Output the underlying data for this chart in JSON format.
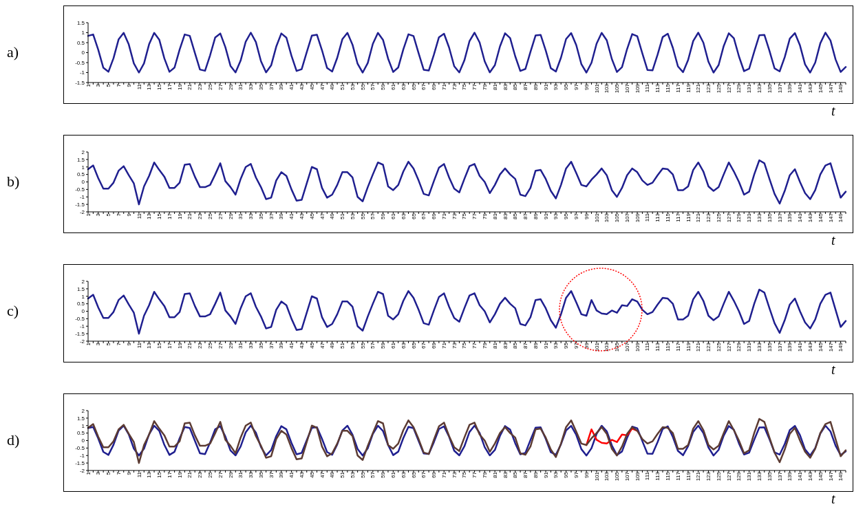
{
  "chart_data": [
    {
      "type": "line",
      "title": "a)",
      "xlabel": "t",
      "ylim": [
        -1.5,
        1.5
      ],
      "yticks": [
        -1.5,
        -1,
        -0.5,
        0,
        0.5,
        1,
        1.5
      ],
      "categories": [
        "1",
        null,
        "3",
        null,
        "5",
        null,
        "7",
        null,
        "9",
        null,
        "11",
        null,
        "13",
        null,
        "15",
        null,
        "17",
        null,
        "19",
        null,
        "21",
        null,
        "23",
        null,
        "25",
        null,
        "27",
        null,
        "29",
        null,
        "31",
        null,
        "33",
        null,
        "35",
        null,
        "37",
        null,
        "39",
        null,
        "41",
        null,
        "43",
        null,
        "45",
        null,
        "47",
        null,
        "49",
        null,
        "51",
        null,
        "53",
        null,
        "55",
        null,
        "57",
        null,
        "59",
        null,
        "61",
        null,
        "63",
        null,
        "65",
        null,
        "67",
        null,
        "69",
        null,
        "71",
        null,
        "73",
        null,
        "75",
        null,
        "77",
        null,
        "79",
        null,
        "81",
        null,
        "83",
        null,
        "85",
        null,
        "87",
        null,
        "89",
        null,
        "91",
        null,
        "93",
        null,
        "95",
        null,
        "97",
        null,
        "99",
        null,
        "101",
        null,
        "103",
        null,
        "105",
        null,
        "107",
        null,
        "109",
        null,
        "111",
        null,
        "113",
        null,
        "115",
        null,
        "117",
        null,
        "119",
        null,
        "121",
        null,
        "123",
        null,
        "125",
        null,
        "127",
        null,
        "129",
        null,
        "131",
        null,
        "133",
        null,
        "135",
        null,
        "137",
        null,
        "139",
        null,
        "141",
        null,
        "143",
        null,
        "145",
        null,
        "147",
        null,
        "149",
        null
      ],
      "series": [
        {
          "color": "#1f1f8f",
          "values": [
            0.84,
            0.91,
            0.14,
            -0.76,
            -0.96,
            -0.28,
            0.66,
            0.99,
            0.41,
            -0.54,
            -1.0,
            -0.54,
            0.42,
            0.99,
            0.65,
            -0.29,
            -0.96,
            -0.75,
            0.15,
            0.91,
            0.84,
            -0.01,
            -0.85,
            -0.91,
            -0.13,
            0.76,
            0.96,
            0.27,
            -0.66,
            -0.99,
            -0.4,
            0.55,
            1.0,
            0.53,
            -0.43,
            -0.99,
            -0.64,
            0.3,
            0.96,
            0.75,
            -0.16,
            -0.92,
            -0.83,
            0.02,
            0.85,
            0.9,
            0.12,
            -0.77,
            -0.95,
            -0.26,
            0.67,
            0.99,
            0.4,
            -0.56,
            -1.0,
            -0.52,
            0.44,
            0.99,
            0.64,
            -0.3,
            -0.97,
            -0.74,
            0.17,
            0.92,
            0.83,
            -0.03,
            -0.86,
            -0.9,
            -0.11,
            0.77,
            0.95,
            0.25,
            -0.68,
            -0.99,
            -0.39,
            0.57,
            1.0,
            0.51,
            -0.44,
            -0.99,
            -0.63,
            0.31,
            0.97,
            0.73,
            -0.18,
            -0.92,
            -0.82,
            0.04,
            0.86,
            0.89,
            0.11,
            -0.78,
            -0.95,
            -0.25,
            0.68,
            0.98,
            0.38,
            -0.57,
            -1.0,
            -0.51,
            0.45,
            0.99,
            0.62,
            -0.32,
            -0.97,
            -0.73,
            0.18,
            0.93,
            0.82,
            -0.04,
            -0.87,
            -0.89,
            -0.1,
            0.78,
            0.95,
            0.24,
            -0.69,
            -0.98,
            -0.37,
            0.58,
            1.0,
            0.5,
            -0.46,
            -1.0,
            -0.62,
            0.33,
            0.97,
            0.72,
            -0.19,
            -0.93,
            -0.81,
            0.05,
            0.87,
            0.89,
            0.09,
            -0.79,
            -0.94,
            -0.23,
            0.7,
            0.98,
            0.36,
            -0.59,
            -1.0,
            -0.5,
            0.47,
            1.0,
            0.61,
            -0.34,
            -0.97,
            -0.72
          ]
        }
      ]
    },
    {
      "type": "line",
      "title": "b)",
      "xlabel": "t",
      "ylim": [
        -2,
        2
      ],
      "yticks": [
        -2,
        -1.5,
        -1,
        -0.5,
        0,
        0.5,
        1,
        1.5,
        2
      ],
      "categories": [
        "1",
        null,
        "3",
        null,
        "5",
        null,
        "7",
        null,
        "9",
        null,
        "11",
        null,
        "13",
        null,
        "15",
        null,
        "17",
        null,
        "19",
        null,
        "21",
        null,
        "23",
        null,
        "25",
        null,
        "27",
        null,
        "29",
        null,
        "31",
        null,
        "33",
        null,
        "35",
        null,
        "37",
        null,
        "39",
        null,
        "41",
        null,
        "43",
        null,
        "45",
        null,
        "47",
        null,
        "49",
        null,
        "51",
        null,
        "53",
        null,
        "55",
        null,
        "57",
        null,
        "59",
        null,
        "61",
        null,
        "63",
        null,
        "65",
        null,
        "67",
        null,
        "69",
        null,
        "71",
        null,
        "73",
        null,
        "75",
        null,
        "77",
        null,
        "79",
        null,
        "81",
        null,
        "83",
        null,
        "85",
        null,
        "87",
        null,
        "89",
        null,
        "91",
        null,
        "93",
        null,
        "95",
        null,
        "97",
        null,
        "99",
        null,
        "101",
        null,
        "103",
        null,
        "105",
        null,
        "107",
        null,
        "109",
        null,
        "111",
        null,
        "113",
        null,
        "115",
        null,
        "117",
        null,
        "119",
        null,
        "121",
        null,
        "123",
        null,
        "125",
        null,
        "127",
        null,
        "129",
        null,
        "131",
        null,
        "133",
        null,
        "135",
        null,
        "137",
        null,
        "139",
        null,
        "141",
        null,
        "143",
        null,
        "145",
        null,
        "147",
        null,
        "149",
        null
      ],
      "series": [
        {
          "color": "#1f1f8f",
          "values": [
            0.85,
            1.1,
            0.25,
            -0.45,
            -0.45,
            -0.05,
            0.75,
            1.05,
            0.45,
            -0.1,
            -1.5,
            -0.3,
            0.4,
            1.3,
            0.8,
            0.35,
            -0.4,
            -0.4,
            -0.05,
            1.15,
            1.2,
            0.35,
            -0.35,
            -0.35,
            -0.2,
            0.5,
            1.25,
            0.05,
            -0.35,
            -0.85,
            0.2,
            1.0,
            1.2,
            0.3,
            -0.35,
            -1.15,
            -1.05,
            0.1,
            0.65,
            0.4,
            -0.5,
            -1.25,
            -1.2,
            -0.1,
            1.0,
            0.85,
            -0.4,
            -1.05,
            -0.85,
            -0.2,
            0.65,
            0.65,
            0.3,
            -1.0,
            -1.3,
            -0.35,
            0.5,
            1.3,
            1.15,
            -0.3,
            -0.55,
            -0.2,
            0.7,
            1.35,
            0.9,
            0.1,
            -0.8,
            -0.9,
            0.05,
            0.95,
            1.2,
            0.3,
            -0.45,
            -0.7,
            0.2,
            1.05,
            1.2,
            0.4,
            0.0,
            -0.75,
            -0.2,
            0.5,
            0.9,
            0.5,
            0.2,
            -0.85,
            -0.95,
            -0.4,
            0.75,
            0.8,
            0.2,
            -0.6,
            -1.1,
            -0.2,
            0.9,
            1.35,
            0.6,
            -0.2,
            -0.3,
            0.15,
            0.5,
            0.9,
            0.45,
            -0.55,
            -1.0,
            -0.4,
            0.45,
            0.9,
            0.65,
            0.1,
            -0.2,
            -0.05,
            0.45,
            0.9,
            0.85,
            0.5,
            -0.55,
            -0.55,
            -0.3,
            0.8,
            1.3,
            0.7,
            -0.3,
            -0.6,
            -0.35,
            0.5,
            1.3,
            0.7,
            0.0,
            -0.85,
            -0.65,
            0.5,
            1.45,
            1.25,
            0.2,
            -0.8,
            -1.45,
            -0.6,
            0.45,
            0.85,
            0.0,
            -0.75,
            -1.15,
            -0.55,
            0.5,
            1.1,
            1.25,
            0.1,
            -1.05,
            -0.65
          ]
        }
      ]
    },
    {
      "type": "line",
      "title": "c)",
      "xlabel": "t",
      "ylim": [
        -2,
        2
      ],
      "yticks": [
        -2,
        -1.5,
        -1,
        -0.5,
        0,
        0.5,
        1,
        1.5,
        2
      ],
      "categories": [
        "1",
        null,
        "3",
        null,
        "5",
        null,
        "7",
        null,
        "9",
        null,
        "11",
        null,
        "13",
        null,
        "15",
        null,
        "17",
        null,
        "19",
        null,
        "21",
        null,
        "23",
        null,
        "25",
        null,
        "27",
        null,
        "29",
        null,
        "31",
        null,
        "33",
        null,
        "35",
        null,
        "37",
        null,
        "39",
        null,
        "41",
        null,
        "43",
        null,
        "45",
        null,
        "47",
        null,
        "49",
        null,
        "51",
        null,
        "53",
        null,
        "55",
        null,
        "57",
        null,
        "59",
        null,
        "61",
        null,
        "63",
        null,
        "65",
        null,
        "67",
        null,
        "69",
        null,
        "71",
        null,
        "73",
        null,
        "75",
        null,
        "77",
        null,
        "79",
        null,
        "81",
        null,
        "83",
        null,
        "85",
        null,
        "87",
        null,
        "89",
        null,
        "91",
        null,
        "93",
        null,
        "95",
        null,
        "97",
        null,
        "99",
        null,
        "101",
        null,
        "103",
        null,
        "105",
        null,
        "107",
        null,
        "109",
        null,
        "111",
        null,
        "113",
        null,
        "115",
        null,
        "117",
        null,
        "119",
        null,
        "121",
        null,
        "123",
        null,
        "125",
        null,
        "127",
        null,
        "129",
        null,
        "131",
        null,
        "133",
        null,
        "135",
        null,
        "137",
        null,
        "139",
        null,
        "141",
        null,
        "143",
        null,
        "145",
        null,
        "147",
        null,
        "149",
        null
      ],
      "series": [
        {
          "color": "#1f1f8f",
          "values": [
            0.85,
            1.1,
            0.25,
            -0.45,
            -0.45,
            -0.05,
            0.75,
            1.05,
            0.45,
            -0.1,
            -1.5,
            -0.3,
            0.4,
            1.3,
            0.8,
            0.35,
            -0.4,
            -0.4,
            -0.05,
            1.15,
            1.2,
            0.35,
            -0.35,
            -0.35,
            -0.2,
            0.5,
            1.25,
            0.05,
            -0.35,
            -0.85,
            0.2,
            1.0,
            1.2,
            0.3,
            -0.35,
            -1.15,
            -1.05,
            0.1,
            0.65,
            0.4,
            -0.5,
            -1.25,
            -1.2,
            -0.1,
            1.0,
            0.85,
            -0.4,
            -1.05,
            -0.85,
            -0.2,
            0.65,
            0.65,
            0.3,
            -1.0,
            -1.3,
            -0.35,
            0.5,
            1.3,
            1.15,
            -0.3,
            -0.55,
            -0.2,
            0.7,
            1.35,
            0.9,
            0.1,
            -0.8,
            -0.9,
            0.05,
            0.95,
            1.2,
            0.3,
            -0.45,
            -0.7,
            0.2,
            1.05,
            1.2,
            0.4,
            0.0,
            -0.75,
            -0.2,
            0.5,
            0.9,
            0.5,
            0.2,
            -0.85,
            -0.95,
            -0.4,
            0.75,
            0.8,
            0.2,
            -0.6,
            -1.1,
            -0.2,
            0.9,
            1.35,
            0.6,
            -0.2,
            -0.3,
            0.75,
            0.05,
            -0.15,
            -0.2,
            0.05,
            -0.1,
            0.4,
            0.35,
            0.8,
            0.65,
            0.1,
            -0.2,
            -0.05,
            0.45,
            0.9,
            0.85,
            0.5,
            -0.55,
            -0.55,
            -0.3,
            0.8,
            1.3,
            0.7,
            -0.3,
            -0.6,
            -0.35,
            0.5,
            1.3,
            0.7,
            0.0,
            -0.85,
            -0.65,
            0.5,
            1.45,
            1.25,
            0.2,
            -0.8,
            -1.45,
            -0.6,
            0.45,
            0.85,
            0.0,
            -0.75,
            -1.15,
            -0.55,
            0.5,
            1.1,
            1.25,
            0.1,
            -1.05,
            -0.65
          ]
        }
      ]
    },
    {
      "type": "line",
      "title": "d)",
      "xlabel": "t",
      "ylim": [
        -2,
        2
      ],
      "yticks": [
        -2,
        -1.5,
        -1,
        -0.5,
        0,
        0.5,
        1,
        1.5,
        2
      ],
      "categories": [
        "1",
        null,
        "3",
        null,
        "5",
        null,
        "7",
        null,
        "9",
        null,
        "11",
        null,
        "13",
        null,
        "15",
        null,
        "17",
        null,
        "19",
        null,
        "21",
        null,
        "23",
        null,
        "25",
        null,
        "27",
        null,
        "29",
        null,
        "31",
        null,
        "33",
        null,
        "35",
        null,
        "37",
        null,
        "39",
        null,
        "41",
        null,
        "43",
        null,
        "45",
        null,
        "47",
        null,
        "49",
        null,
        "51",
        null,
        "53",
        null,
        "55",
        null,
        "57",
        null,
        "59",
        null,
        "61",
        null,
        "63",
        null,
        "65",
        null,
        "67",
        null,
        "69",
        null,
        "71",
        null,
        "73",
        null,
        "75",
        null,
        "77",
        null,
        "79",
        null,
        "81",
        null,
        "83",
        null,
        "85",
        null,
        "87",
        null,
        "89",
        null,
        "91",
        null,
        "93",
        null,
        "95",
        null,
        "97",
        null,
        "99",
        null,
        "101",
        null,
        "103",
        null,
        "105",
        null,
        "107",
        null,
        "109",
        null,
        "111",
        null,
        "113",
        null,
        "115",
        null,
        "117",
        null,
        "119",
        null,
        "121",
        null,
        "123",
        null,
        "125",
        null,
        "127",
        null,
        "129",
        null,
        "131",
        null,
        "133",
        null,
        "135",
        null,
        "137",
        null,
        "139",
        null,
        "141",
        null,
        "143",
        null,
        "145",
        null,
        "147",
        null,
        "149",
        null
      ],
      "series": [
        {
          "color": "#1f1f8f",
          "values": [
            0.84,
            0.91,
            0.14,
            -0.76,
            -0.96,
            -0.28,
            0.66,
            0.99,
            0.41,
            -0.54,
            -1.0,
            -0.54,
            0.42,
            0.99,
            0.65,
            -0.29,
            -0.96,
            -0.75,
            0.15,
            0.91,
            0.84,
            -0.01,
            -0.85,
            -0.91,
            -0.13,
            0.76,
            0.96,
            0.27,
            -0.66,
            -0.99,
            -0.4,
            0.55,
            1.0,
            0.53,
            -0.43,
            -0.99,
            -0.64,
            0.3,
            0.96,
            0.75,
            -0.16,
            -0.92,
            -0.83,
            0.02,
            0.85,
            0.9,
            0.12,
            -0.77,
            -0.95,
            -0.26,
            0.67,
            0.99,
            0.4,
            -0.56,
            -1.0,
            -0.52,
            0.44,
            0.99,
            0.64,
            -0.3,
            -0.97,
            -0.74,
            0.17,
            0.92,
            0.83,
            -0.03,
            -0.86,
            -0.9,
            -0.11,
            0.77,
            0.95,
            0.25,
            -0.68,
            -0.99,
            -0.39,
            0.57,
            1.0,
            0.51,
            -0.44,
            -0.99,
            -0.63,
            0.31,
            0.97,
            0.73,
            -0.18,
            -0.92,
            -0.82,
            0.04,
            0.86,
            0.89,
            0.11,
            -0.78,
            -0.95,
            -0.25,
            0.68,
            0.98,
            0.38,
            -0.57,
            -1.0,
            -0.51,
            0.45,
            0.99,
            0.62,
            -0.32,
            -0.97,
            -0.73,
            0.18,
            0.93,
            0.82,
            -0.04,
            -0.87,
            -0.89,
            -0.1,
            0.78,
            0.95,
            0.24,
            -0.69,
            -0.98,
            -0.37,
            0.58,
            1.0,
            0.5,
            -0.46,
            -1.0,
            -0.62,
            0.33,
            0.97,
            0.72,
            -0.19,
            -0.93,
            -0.81,
            0.05,
            0.87,
            0.89,
            0.09,
            -0.79,
            -0.94,
            -0.23,
            0.7,
            0.98,
            0.36,
            -0.59,
            -1.0,
            -0.5,
            0.47,
            1.0,
            0.61,
            -0.34,
            -0.97,
            -0.72
          ]
        },
        {
          "color": "#ff0000",
          "values": [
            null,
            null,
            null,
            null,
            null,
            null,
            null,
            null,
            null,
            null,
            null,
            null,
            null,
            null,
            null,
            null,
            null,
            null,
            null,
            null,
            null,
            null,
            null,
            null,
            null,
            null,
            null,
            null,
            null,
            null,
            null,
            null,
            null,
            null,
            null,
            null,
            null,
            null,
            null,
            null,
            null,
            null,
            null,
            null,
            null,
            null,
            null,
            null,
            null,
            null,
            null,
            null,
            null,
            null,
            null,
            null,
            null,
            null,
            null,
            null,
            null,
            null,
            null,
            null,
            null,
            null,
            null,
            null,
            null,
            null,
            null,
            null,
            null,
            null,
            null,
            null,
            null,
            null,
            null,
            null,
            null,
            null,
            null,
            null,
            null,
            null,
            null,
            null,
            null,
            null,
            null,
            null,
            null,
            null,
            null,
            null,
            null,
            null,
            -0.3,
            0.75,
            0.05,
            -0.15,
            -0.2,
            0.05,
            -0.1,
            0.4,
            0.35,
            0.8,
            0.65,
            null,
            null,
            null,
            null,
            null,
            null,
            null,
            null,
            null,
            null,
            null,
            null,
            null,
            null,
            null,
            null,
            null,
            null,
            null,
            null,
            null,
            null,
            null,
            null,
            null,
            null,
            null,
            null,
            null,
            null,
            null,
            null,
            null,
            null,
            null,
            null,
            null,
            null,
            null,
            null,
            null
          ]
        },
        {
          "color": "#5c3b33",
          "values": [
            0.85,
            1.1,
            0.25,
            -0.45,
            -0.45,
            -0.05,
            0.75,
            1.05,
            0.45,
            -0.1,
            -1.5,
            -0.3,
            0.4,
            1.3,
            0.8,
            0.35,
            -0.4,
            -0.4,
            -0.05,
            1.15,
            1.2,
            0.35,
            -0.35,
            -0.35,
            -0.2,
            0.5,
            1.25,
            0.05,
            -0.35,
            -0.85,
            0.2,
            1.0,
            1.2,
            0.3,
            -0.35,
            -1.15,
            -1.05,
            0.1,
            0.65,
            0.4,
            -0.5,
            -1.25,
            -1.2,
            -0.1,
            1.0,
            0.85,
            -0.4,
            -1.05,
            -0.85,
            -0.2,
            0.65,
            0.65,
            0.3,
            -1.0,
            -1.3,
            -0.35,
            0.5,
            1.3,
            1.15,
            -0.3,
            -0.55,
            -0.2,
            0.7,
            1.35,
            0.9,
            0.1,
            -0.8,
            -0.9,
            0.05,
            0.95,
            1.2,
            0.3,
            -0.45,
            -0.7,
            0.2,
            1.05,
            1.2,
            0.4,
            0.0,
            -0.75,
            -0.2,
            0.5,
            0.9,
            0.5,
            0.2,
            -0.85,
            -0.95,
            -0.4,
            0.75,
            0.8,
            0.2,
            -0.6,
            -1.1,
            -0.2,
            0.9,
            1.35,
            0.6,
            -0.2,
            -0.3,
            0.15,
            0.5,
            0.9,
            0.45,
            -0.55,
            -1.0,
            -0.4,
            0.45,
            0.9,
            0.65,
            0.1,
            -0.2,
            -0.05,
            0.45,
            0.9,
            0.85,
            0.5,
            -0.55,
            -0.55,
            -0.3,
            0.8,
            1.3,
            0.7,
            -0.3,
            -0.6,
            -0.35,
            0.5,
            1.3,
            0.7,
            0.0,
            -0.85,
            -0.65,
            0.5,
            1.45,
            1.25,
            0.2,
            -0.8,
            -1.45,
            -0.6,
            0.45,
            0.85,
            0.0,
            -0.75,
            -1.15,
            -0.55,
            0.5,
            1.1,
            1.25,
            0.1,
            -1.05,
            -0.65
          ]
        }
      ]
    }
  ]
}
